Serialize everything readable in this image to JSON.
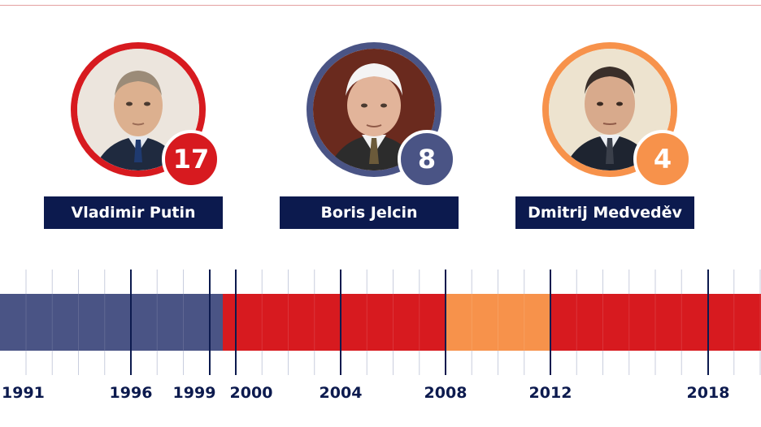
{
  "people": [
    {
      "name": "Vladimir Putin",
      "count": "17",
      "color": "#d71a1f"
    },
    {
      "name": "Boris Jelcin",
      "count": "8",
      "color": "#4a5485"
    },
    {
      "name": "Dmitrij Medveděv",
      "count": "4",
      "color": "#f7924b"
    }
  ],
  "chart_data": {
    "type": "timeline",
    "axis_labels": [
      "1991",
      "1996",
      "1999",
      "2000",
      "2004",
      "2008",
      "2012",
      "2018"
    ],
    "segments": [
      {
        "person": "Boris Jelcin",
        "start": 1991,
        "end": 1999.5,
        "color": "#4a5485"
      },
      {
        "person": "Vladimir Putin",
        "start": 1999.5,
        "end": 2008,
        "color": "#d71a1f"
      },
      {
        "person": "Dmitrij Medveděv",
        "start": 2008,
        "end": 2012,
        "color": "#f7924b"
      },
      {
        "person": "Vladimir Putin",
        "start": 2012,
        "end": 2020,
        "color": "#d71a1f"
      }
    ]
  }
}
